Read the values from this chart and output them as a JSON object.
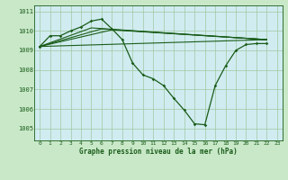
{
  "title": "Graphe pression niveau de la mer (hPa)",
  "bg_color": "#c8e8c8",
  "plot_bg_color": "#d0ecf0",
  "line_color": "#1a5c1a",
  "grid_color": "#a0c8a0",
  "xlim": [
    -0.5,
    23.5
  ],
  "ylim": [
    1004.4,
    1011.3
  ],
  "yticks": [
    1005,
    1006,
    1007,
    1008,
    1009,
    1010,
    1011
  ],
  "xticks": [
    0,
    1,
    2,
    3,
    4,
    5,
    6,
    7,
    8,
    9,
    10,
    11,
    12,
    13,
    14,
    15,
    16,
    17,
    18,
    19,
    20,
    21,
    22,
    23
  ],
  "curve_main": [
    [
      0,
      1009.2
    ],
    [
      1,
      1009.75
    ],
    [
      2,
      1009.75
    ],
    [
      3,
      1010.0
    ],
    [
      4,
      1010.2
    ],
    [
      5,
      1010.5
    ],
    [
      6,
      1010.6
    ],
    [
      7,
      1010.1
    ],
    [
      8,
      1009.55
    ],
    [
      9,
      1008.35
    ],
    [
      10,
      1007.75
    ],
    [
      11,
      1007.55
    ],
    [
      12,
      1007.2
    ],
    [
      13,
      1006.55
    ],
    [
      14,
      1005.95
    ],
    [
      15,
      1005.25
    ],
    [
      16,
      1005.2
    ],
    [
      17,
      1007.2
    ],
    [
      18,
      1008.2
    ],
    [
      19,
      1009.0
    ],
    [
      20,
      1009.3
    ],
    [
      21,
      1009.35
    ],
    [
      22,
      1009.35
    ]
  ],
  "line1_pts": [
    [
      0,
      1009.2
    ],
    [
      22,
      1009.55
    ]
  ],
  "line2_pts": [
    [
      0,
      1009.2
    ],
    [
      7,
      1010.05
    ],
    [
      22,
      1009.55
    ]
  ],
  "line3_pts": [
    [
      0,
      1009.2
    ],
    [
      6,
      1010.1
    ],
    [
      22,
      1009.55
    ]
  ],
  "line4_pts": [
    [
      0,
      1009.2
    ],
    [
      5,
      1010.15
    ],
    [
      22,
      1009.55
    ]
  ]
}
